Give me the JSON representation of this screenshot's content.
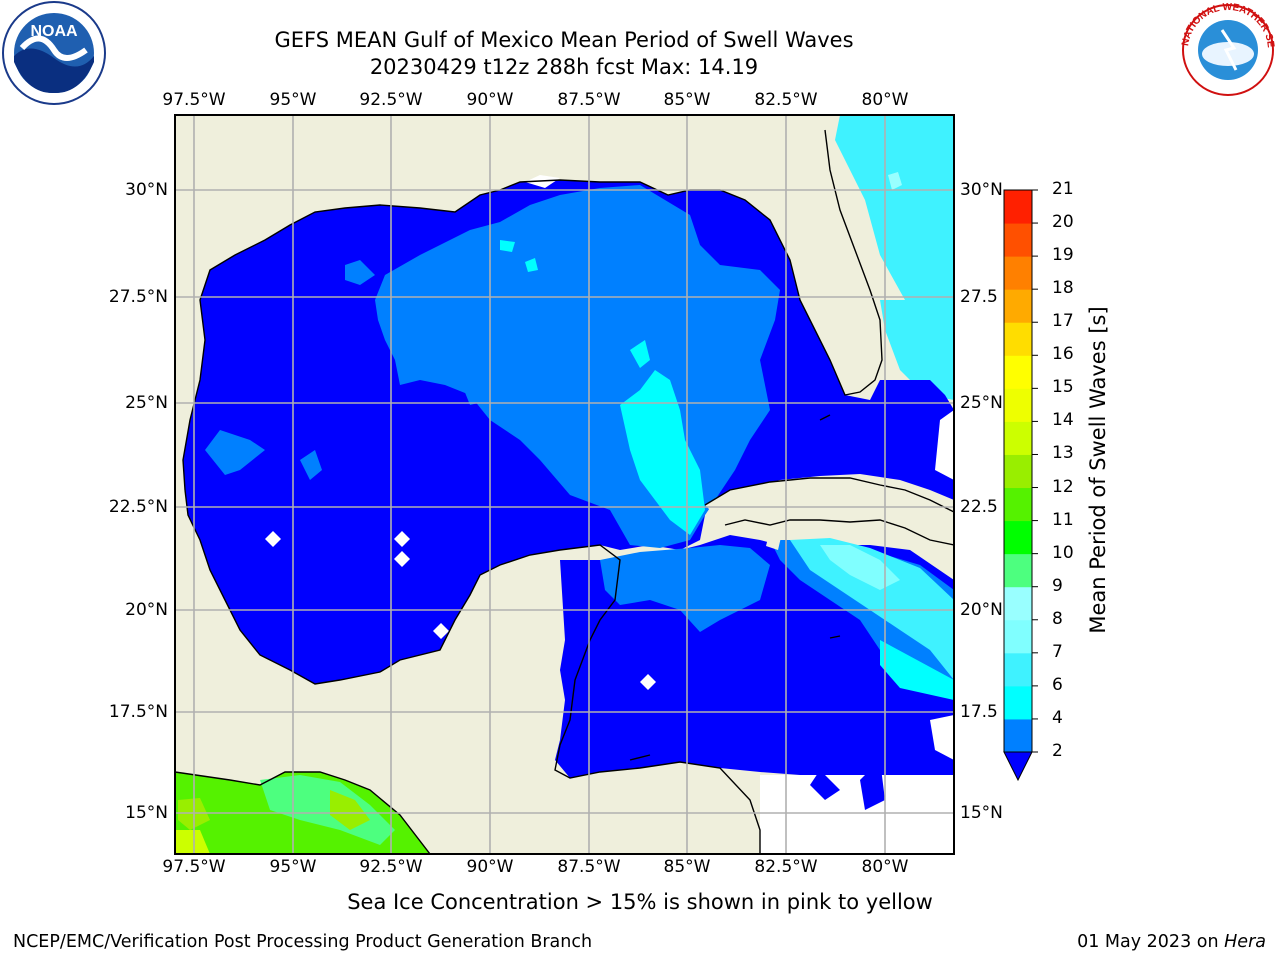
{
  "header": {
    "title_line1": "GEFS MEAN Gulf of Mexico Mean Period of Swell Waves",
    "title_line2": "20230429 t12z 288h fcst   Max: 14.19"
  },
  "map": {
    "lon_labels": [
      "97.5°W",
      "95°W",
      "92.5°W",
      "90°W",
      "87.5°W",
      "85°W",
      "82.5°W",
      "80°W"
    ],
    "lat_labels_left": [
      "30°N",
      "27.5°N",
      "25°N",
      "22.5°N",
      "20°N",
      "17.5°N",
      "15°N"
    ],
    "lat_labels_right": [
      "30°N",
      "27.5",
      "25°N",
      "22.5",
      "20°N",
      "17.5",
      "15°N"
    ],
    "land_color": "#efefdc",
    "grid_color": "#b0b0b0"
  },
  "colorbar": {
    "title": "Mean Period of Swell Waves [s]",
    "tick_labels": [
      "2",
      "4",
      "6",
      "7",
      "8",
      "9",
      "10",
      "11",
      "12",
      "13",
      "14",
      "15",
      "16",
      "17",
      "18",
      "19",
      "20",
      "21"
    ],
    "colors": [
      "#0000ff",
      "#0080ff",
      "#00ffff",
      "#3ff2ff",
      "#80ffff",
      "#99ffff",
      "#4dff7f",
      "#00ff00",
      "#55f200",
      "#99ee00",
      "#ccff00",
      "#eeff00",
      "#ffff00",
      "#ffdd00",
      "#ffaa00",
      "#ff8000",
      "#ff5000",
      "#ff2000",
      "#ff0000"
    ]
  },
  "note": "Sea Ice Concentration > 15% is shown in pink to yellow",
  "footer": {
    "left": "NCEP/EMC/Verification Post Processing Product Generation Branch",
    "right_prefix": "01 May 2023 on ",
    "right_host": "Hera"
  },
  "logos": {
    "noaa_text": "NOAA",
    "nws_text": "NATIONAL WEATHER SERVICE"
  }
}
